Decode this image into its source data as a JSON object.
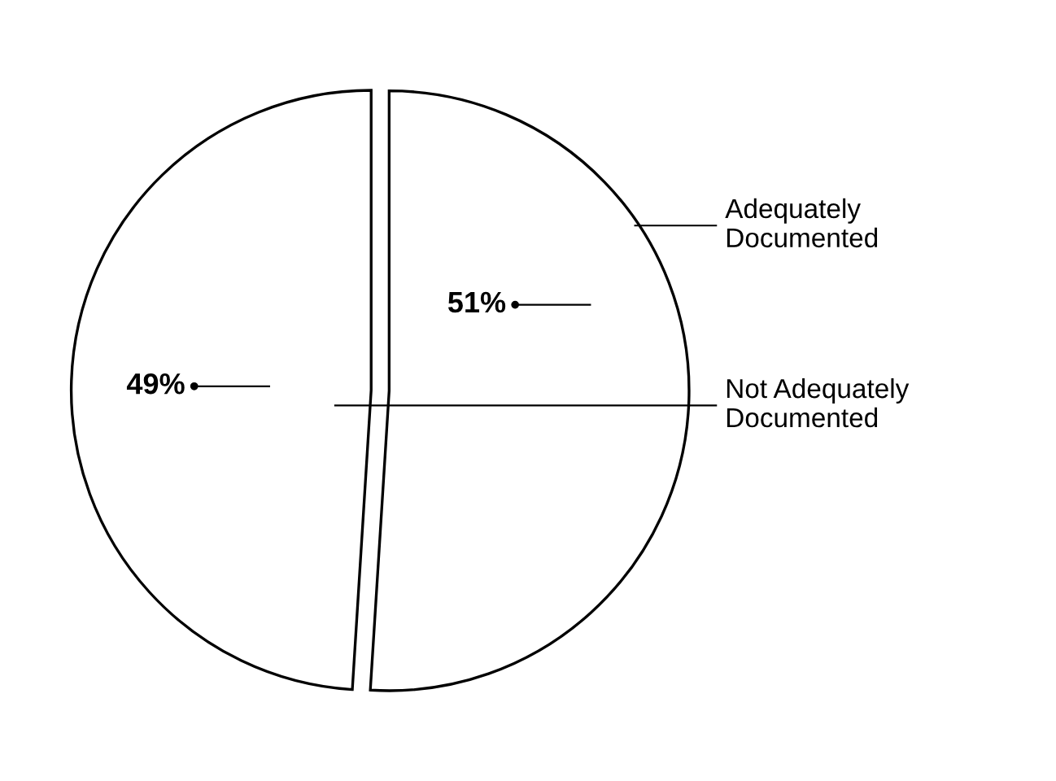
{
  "chart_data": {
    "type": "pie",
    "categories": [
      "Adequately Documented",
      "Not Adequately Documented"
    ],
    "values": [
      51,
      49
    ],
    "colors": [
      "#ffffff",
      "#ffffff"
    ],
    "value_labels": [
      "51%",
      "49%"
    ]
  }
}
